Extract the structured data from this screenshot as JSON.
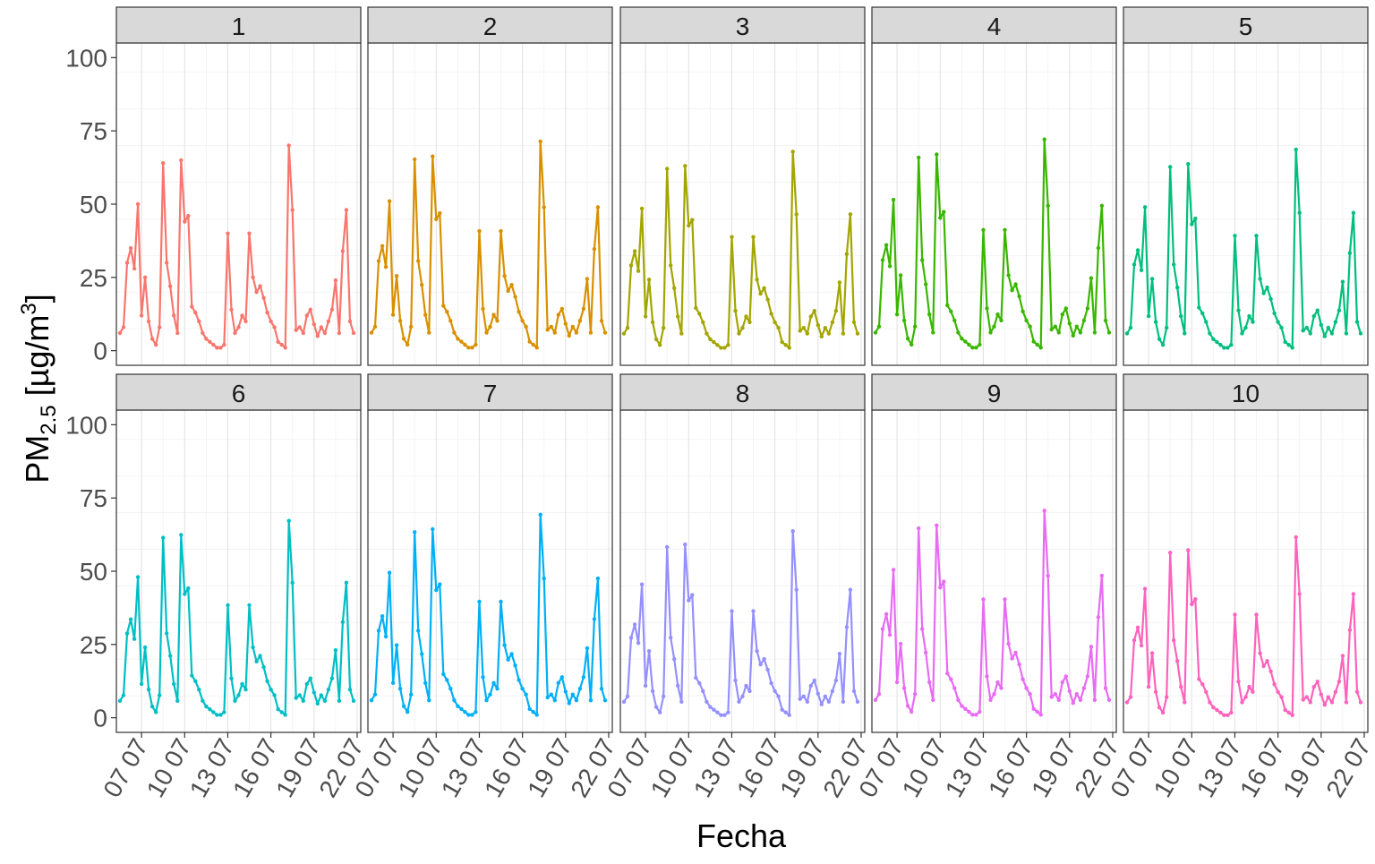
{
  "chart_data": {
    "type": "line",
    "facet_layout": "2 rows x 5 columns",
    "xlabel": "Fecha",
    "ylabel_parts": {
      "main": "PM",
      "sub": "2.5",
      "unit_open": " [µg/m",
      "sup": "3",
      "unit_close": "]"
    },
    "ylim": [
      -5,
      105
    ],
    "yticks": [
      0,
      25,
      50,
      75,
      100
    ],
    "yticklabels": [
      "0",
      "25",
      "50",
      "75",
      "100"
    ],
    "x_range_days": [
      "2019-07-05",
      "2019-07-22"
    ],
    "xticks": [
      "2019-07-07",
      "2019-07-10",
      "2019-07-13",
      "2019-07-16",
      "2019-07-19",
      "2019-07-22"
    ],
    "xticklabels": [
      "07 07",
      "10 07",
      "13 07",
      "16 07",
      "19 07",
      "22 07"
    ],
    "grid": true,
    "legend": "none",
    "base_profile": {
      "x": [
        "2019-07-05 12:00",
        "2019-07-05 18:00",
        "2019-07-06 00:00",
        "2019-07-06 06:00",
        "2019-07-06 12:00",
        "2019-07-06 18:00",
        "2019-07-07 00:00",
        "2019-07-07 06:00",
        "2019-07-07 12:00",
        "2019-07-07 18:00",
        "2019-07-08 00:00",
        "2019-07-08 06:00",
        "2019-07-08 12:00",
        "2019-07-08 18:00",
        "2019-07-09 00:00",
        "2019-07-09 06:00",
        "2019-07-09 12:00",
        "2019-07-09 18:00",
        "2019-07-10 00:00",
        "2019-07-10 06:00",
        "2019-07-10 12:00",
        "2019-07-10 18:00",
        "2019-07-11 00:00",
        "2019-07-11 06:00",
        "2019-07-11 12:00",
        "2019-07-11 18:00",
        "2019-07-12 00:00",
        "2019-07-12 06:00",
        "2019-07-12 12:00",
        "2019-07-12 18:00",
        "2019-07-13 00:00",
        "2019-07-13 06:00",
        "2019-07-13 12:00",
        "2019-07-13 18:00",
        "2019-07-14 00:00",
        "2019-07-14 06:00",
        "2019-07-14 12:00",
        "2019-07-14 18:00",
        "2019-07-15 00:00",
        "2019-07-15 06:00",
        "2019-07-15 12:00",
        "2019-07-15 18:00",
        "2019-07-16 00:00",
        "2019-07-16 06:00",
        "2019-07-16 12:00",
        "2019-07-16 18:00",
        "2019-07-17 00:00",
        "2019-07-17 06:00",
        "2019-07-17 12:00",
        "2019-07-17 18:00",
        "2019-07-18 00:00",
        "2019-07-18 06:00",
        "2019-07-18 12:00",
        "2019-07-18 18:00",
        "2019-07-19 00:00",
        "2019-07-19 06:00",
        "2019-07-19 12:00",
        "2019-07-19 18:00",
        "2019-07-20 00:00",
        "2019-07-20 06:00",
        "2019-07-20 12:00",
        "2019-07-20 18:00",
        "2019-07-21 00:00",
        "2019-07-21 06:00",
        "2019-07-21 12:00",
        "2019-07-21 18:00"
      ],
      "y": [
        6,
        8,
        30,
        35,
        28,
        50,
        12,
        25,
        10,
        4,
        2,
        8,
        64,
        30,
        22,
        12,
        6,
        65,
        44,
        46,
        15,
        13,
        10,
        6,
        4,
        3,
        2,
        1,
        1,
        2,
        40,
        14,
        6,
        8,
        12,
        10,
        40,
        25,
        20,
        22,
        18,
        13,
        10,
        8,
        3,
        2,
        1,
        70,
        48,
        7,
        8,
        6,
        12,
        14,
        9,
        5,
        8,
        6,
        10,
        14,
        24,
        6,
        34,
        48,
        10,
        6
      ]
    },
    "series": [
      {
        "name": "1",
        "color": "#F8766D",
        "scale": 1.0
      },
      {
        "name": "2",
        "color": "#D89000",
        "scale": 1.02
      },
      {
        "name": "3",
        "color": "#A3A500",
        "scale": 0.97
      },
      {
        "name": "4",
        "color": "#39B600",
        "scale": 1.03
      },
      {
        "name": "5",
        "color": "#00BF7D",
        "scale": 0.98
      },
      {
        "name": "6",
        "color": "#00BFC4",
        "scale": 0.96
      },
      {
        "name": "7",
        "color": "#00B0F6",
        "scale": 0.99
      },
      {
        "name": "8",
        "color": "#9590FF",
        "scale": 0.91
      },
      {
        "name": "9",
        "color": "#E76BF3",
        "scale": 1.01
      },
      {
        "name": "10",
        "color": "#FF62BC",
        "scale": 0.88
      }
    ]
  }
}
